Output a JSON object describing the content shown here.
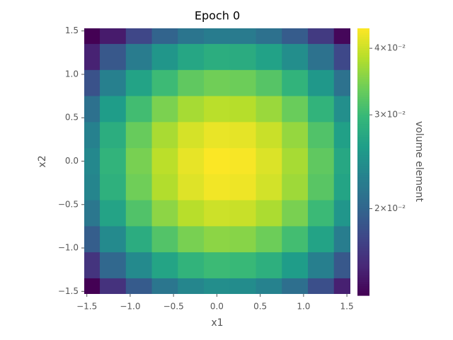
{
  "chart_data": {
    "type": "heatmap",
    "title": "Epoch 0",
    "x_label": "x1",
    "y_label": "x2",
    "colorbar_label": "volume element",
    "x": [
      -1.5,
      -1.2,
      -0.9,
      -0.6,
      -0.3,
      0,
      0.3,
      0.6,
      0.9,
      1.2,
      1.5
    ],
    "y": [
      1.5,
      1.2,
      0.9,
      0.6,
      0.3,
      0,
      -0.3,
      -0.6,
      -0.9,
      -1.2,
      -1.5
    ],
    "z": [
      [
        0.01215,
        0.01497,
        0.01763,
        0.01991,
        0.02154,
        0.02233,
        0.02215,
        0.02107,
        0.01922,
        0.01678,
        0.01403
      ],
      [
        0.01534,
        0.0189,
        0.02226,
        0.02514,
        0.0272,
        0.02819,
        0.02797,
        0.02661,
        0.02427,
        0.02119,
        0.01771
      ],
      [
        0.01842,
        0.02269,
        0.02673,
        0.03019,
        0.03266,
        0.03385,
        0.03358,
        0.03195,
        0.02914,
        0.02544,
        0.02127
      ],
      [
        0.02107,
        0.02596,
        0.03057,
        0.03453,
        0.03736,
        0.03872,
        0.03841,
        0.03655,
        0.03333,
        0.0291,
        0.02433
      ],
      [
        0.02289,
        0.0282,
        0.03322,
        0.03752,
        0.0406,
        0.04208,
        0.04174,
        0.03971,
        0.03622,
        0.03162,
        0.02643
      ],
      [
        0.02365,
        0.02914,
        0.03433,
        0.03877,
        0.04195,
        0.04347,
        0.04312,
        0.04103,
        0.03742,
        0.03267,
        0.02731
      ],
      [
        0.02327,
        0.02867,
        0.03377,
        0.03815,
        0.04127,
        0.04277,
        0.04243,
        0.04037,
        0.03682,
        0.03215,
        0.02687
      ],
      [
        0.02176,
        0.02681,
        0.03158,
        0.03566,
        0.03859,
        0.03999,
        0.03967,
        0.03775,
        0.03442,
        0.03005,
        0.02512
      ],
      [
        0.01936,
        0.02386,
        0.0281,
        0.03174,
        0.03434,
        0.03559,
        0.0353,
        0.03359,
        0.03063,
        0.02675,
        0.02236
      ],
      [
        0.0164,
        0.02021,
        0.02381,
        0.02689,
        0.02909,
        0.03015,
        0.02991,
        0.02846,
        0.02595,
        0.02266,
        0.01894
      ],
      [
        0.01321,
        0.01628,
        0.01917,
        0.02165,
        0.02343,
        0.02428,
        0.02409,
        0.02292,
        0.02089,
        0.01825,
        0.01525
      ]
    ],
    "xlim": [
      -1.53,
      1.54
    ],
    "ylim": [
      -1.53,
      1.53
    ],
    "xticks": [
      {
        "value": -1.5,
        "label": "−1.5"
      },
      {
        "value": -1.0,
        "label": "−1.0"
      },
      {
        "value": -0.5,
        "label": "−0.5"
      },
      {
        "value": 0,
        "label": "0.0"
      },
      0.5,
      {
        "value": 1.0,
        "label": "1.0"
      },
      1.5
    ],
    "yticks": [
      {
        "value": -1.5,
        "label": "−1.5"
      },
      {
        "value": -1.0,
        "label": "−1.0"
      },
      {
        "value": -0.5,
        "label": "−0.5"
      },
      {
        "value": 0,
        "label": "0.0"
      },
      0.5,
      {
        "value": 1.0,
        "label": "1.0"
      },
      1.5
    ],
    "colormap": "viridis",
    "color_scale": "log",
    "clim": [
      0.01375,
      0.0436
    ],
    "cticks": [
      {
        "value": 0.02,
        "label": "2×10⁻²"
      },
      {
        "value": 0.03,
        "label": "3×10⁻²"
      },
      {
        "value": 0.04,
        "label": "4×10⁻²"
      }
    ]
  }
}
